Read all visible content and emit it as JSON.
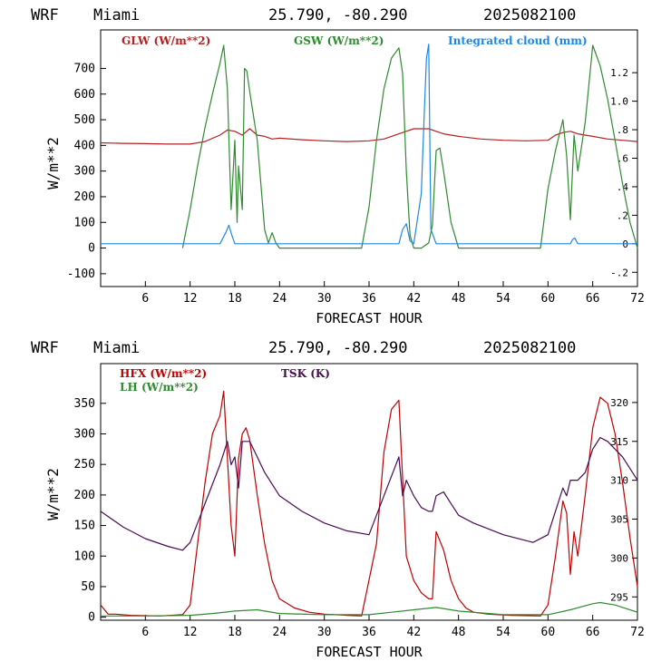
{
  "panels": [
    {
      "header": {
        "model": "WRF",
        "location": "Miami",
        "coords": "25.790, -80.290",
        "datetime": "2025082100"
      },
      "xlabel": "FORECAST HOUR",
      "ylabel": "W/m**2",
      "legend": [
        {
          "text": "GLW (W/m**2)",
          "color": "#b22222"
        },
        {
          "text": "GSW (W/m**2)",
          "color": "#2e8b2e"
        },
        {
          "text": "Integrated cloud (mm)",
          "color": "#1e88e5"
        }
      ],
      "yticks": [
        "-100",
        "0",
        "100",
        "200",
        "300",
        "400",
        "500",
        "600",
        "700"
      ],
      "rticks": [
        "-.2",
        "0",
        ".2",
        ".4",
        ".6",
        ".8",
        "1.0",
        "1.2"
      ],
      "xticks": [
        "6",
        "12",
        "18",
        "24",
        "30",
        "36",
        "42",
        "48",
        "54",
        "60",
        "66",
        "72"
      ]
    },
    {
      "header": {
        "model": "WRF",
        "location": "Miami",
        "coords": "25.790, -80.290",
        "datetime": "2025082100"
      },
      "xlabel": "FORECAST HOUR",
      "ylabel": "W/m**2",
      "legend": [
        {
          "text": "HFX (W/m**2)",
          "color": "#c00000"
        },
        {
          "text": "LH  (W/m**2)",
          "color": "#2e8b2e"
        },
        {
          "text": "TSK (K)",
          "color": "#4b0a55"
        }
      ],
      "yticks": [
        "0",
        "50",
        "100",
        "150",
        "200",
        "250",
        "300",
        "350"
      ],
      "rticks": [
        "295",
        "300",
        "305",
        "310",
        "315",
        "320"
      ],
      "xticks": [
        "6",
        "12",
        "18",
        "24",
        "30",
        "36",
        "42",
        "48",
        "54",
        "60",
        "66",
        "72"
      ]
    }
  ],
  "chart_data": [
    {
      "type": "line",
      "xlabel": "FORECAST HOUR",
      "ylabel": "W/m**2",
      "xlim": [
        0,
        72
      ],
      "ylim": [
        -150,
        850
      ],
      "y2lim": [
        -0.3,
        1.5
      ],
      "grid": false,
      "legend_position": "top",
      "series": [
        {
          "name": "GLW (W/m**2)",
          "color": "#b22222",
          "axis": "left",
          "x": [
            0,
            3,
            6,
            9,
            12,
            14,
            16,
            17,
            18,
            19,
            20,
            21,
            22,
            23,
            24,
            27,
            30,
            33,
            36,
            38,
            40,
            41,
            42,
            43,
            44,
            45,
            46,
            48,
            51,
            54,
            57,
            60,
            61,
            62,
            63,
            64,
            66,
            68,
            70,
            72
          ],
          "y": [
            410,
            408,
            407,
            405,
            405,
            415,
            440,
            460,
            455,
            440,
            465,
            440,
            435,
            425,
            428,
            422,
            418,
            415,
            418,
            425,
            445,
            455,
            465,
            465,
            465,
            455,
            445,
            435,
            425,
            420,
            418,
            420,
            440,
            450,
            455,
            445,
            435,
            425,
            420,
            415
          ]
        },
        {
          "name": "GSW (W/m**2)",
          "color": "#2e8b2e",
          "axis": "left",
          "x": [
            11,
            12,
            13,
            14,
            15,
            16,
            16.5,
            17,
            17.2,
            17.5,
            18,
            18.3,
            18.5,
            19,
            19.3,
            19.6,
            20,
            21,
            22,
            22.5,
            23,
            23.5,
            24,
            35,
            36,
            37,
            38,
            39,
            40,
            40.5,
            41,
            41.5,
            42,
            43,
            44,
            44.5,
            45,
            45.5,
            46,
            47,
            48,
            59,
            60,
            61,
            62,
            62.5,
            63,
            63.5,
            64,
            65,
            66,
            67,
            68,
            69,
            70,
            71,
            72
          ],
          "y": [
            0,
            150,
            320,
            470,
            600,
            720,
            790,
            620,
            430,
            150,
            420,
            100,
            320,
            150,
            700,
            690,
            610,
            420,
            70,
            20,
            60,
            20,
            0,
            0,
            160,
            420,
            620,
            740,
            780,
            680,
            300,
            50,
            0,
            0,
            20,
            90,
            380,
            390,
            300,
            100,
            0,
            0,
            230,
            380,
            500,
            360,
            110,
            440,
            300,
            490,
            790,
            710,
            580,
            420,
            250,
            100,
            0
          ]
        },
        {
          "name": "Integrated cloud (mm)",
          "color": "#1e88e5",
          "axis": "right",
          "x": [
            0,
            16,
            16.8,
            17.2,
            17.6,
            18,
            40,
            40.5,
            41,
            41.5,
            42,
            43,
            43.4,
            43.7,
            44,
            44.3,
            45,
            63,
            63.3,
            63.6,
            64,
            72
          ],
          "y": [
            0,
            0,
            0.08,
            0.13,
            0.06,
            0,
            0,
            0.1,
            0.14,
            0.02,
            0,
            0.35,
            0.9,
            1.3,
            1.4,
            0.1,
            0,
            0,
            0.03,
            0.04,
            0,
            0
          ]
        }
      ]
    },
    {
      "type": "line",
      "xlabel": "FORECAST HOUR",
      "ylabel": "W/m**2",
      "xlim": [
        0,
        72
      ],
      "ylim": [
        -5,
        415
      ],
      "y2lim": [
        292,
        325
      ],
      "grid": false,
      "legend_position": "top",
      "series": [
        {
          "name": "HFX (W/m**2)",
          "color": "#c00000",
          "axis": "left",
          "x": [
            0,
            1,
            2,
            4,
            8,
            11,
            12,
            13,
            14,
            15,
            16,
            16.5,
            17,
            17.5,
            18,
            18.5,
            19,
            19.5,
            20,
            21,
            22,
            23,
            24,
            26,
            28,
            30,
            33,
            35,
            37,
            38,
            39,
            40,
            41,
            42,
            43,
            44,
            44.5,
            45,
            46,
            47,
            48,
            49,
            50,
            52,
            55,
            59,
            60,
            61,
            62,
            62.5,
            63,
            63.5,
            64,
            65,
            66,
            67,
            68,
            69,
            70,
            71,
            72
          ],
          "y": [
            20,
            5,
            5,
            3,
            2,
            4,
            20,
            120,
            220,
            300,
            330,
            370,
            260,
            150,
            100,
            260,
            300,
            310,
            290,
            200,
            120,
            60,
            30,
            15,
            8,
            5,
            3,
            2,
            120,
            270,
            340,
            355,
            100,
            60,
            40,
            30,
            30,
            140,
            110,
            60,
            30,
            15,
            8,
            5,
            3,
            2,
            20,
            100,
            190,
            170,
            70,
            140,
            100,
            200,
            310,
            360,
            350,
            300,
            220,
            130,
            50
          ]
        },
        {
          "name": "LH  (W/m**2)",
          "color": "#2e8b2e",
          "axis": "left",
          "x": [
            0,
            6,
            12,
            15,
            18,
            21,
            24,
            30,
            36,
            39,
            42,
            45,
            48,
            54,
            60,
            63,
            66,
            67,
            69,
            72
          ],
          "y": [
            2,
            2,
            3,
            6,
            10,
            12,
            6,
            4,
            4,
            8,
            12,
            16,
            10,
            4,
            4,
            12,
            22,
            24,
            20,
            8
          ]
        },
        {
          "name": "TSK (K)",
          "color": "#4b0a55",
          "axis": "right",
          "x": [
            0,
            3,
            6,
            9,
            11,
            12,
            14,
            16,
            17,
            17.5,
            18,
            18.5,
            19,
            20,
            21,
            22,
            24,
            27,
            30,
            33,
            36,
            38,
            40,
            40.5,
            41,
            42,
            43,
            44,
            44.5,
            45,
            46,
            47,
            48,
            50,
            54,
            58,
            60,
            62,
            62.5,
            63,
            64,
            65,
            66,
            67,
            68,
            70,
            72
          ],
          "y": [
            306,
            304,
            302.5,
            301.5,
            301,
            302,
            307,
            312,
            315,
            312,
            313,
            309,
            315,
            315,
            313,
            311,
            308,
            306,
            304.5,
            303.5,
            303,
            308,
            313,
            308,
            310,
            308,
            306.5,
            306,
            306,
            308,
            308.5,
            307,
            305.5,
            304.5,
            303,
            302,
            303,
            309,
            308,
            310,
            310,
            311,
            314,
            315.5,
            315,
            313,
            310
          ]
        }
      ]
    }
  ]
}
